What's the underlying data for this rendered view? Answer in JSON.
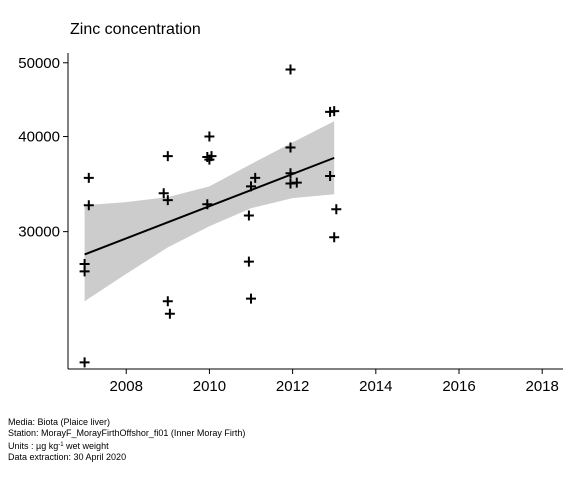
{
  "chart_data": {
    "type": "scatter",
    "title": "Zinc concentration",
    "xlabel": "",
    "ylabel": "",
    "y_scale": "log",
    "xlim": [
      2006.6,
      2018.5
    ],
    "ylim": [
      19800,
      51500
    ],
    "x_ticks": [
      2008,
      2010,
      2012,
      2014,
      2016,
      2018
    ],
    "y_ticks": [
      30000,
      40000,
      50000
    ],
    "x_tick_labels": [
      "2008",
      "2010",
      "2012",
      "2014",
      "2016",
      "2018"
    ],
    "y_tick_labels": [
      "30000",
      "40000",
      "50000"
    ],
    "grid": false,
    "colors": {
      "points": "#000000",
      "trend": "#000000",
      "band": "#cccccc"
    },
    "points": [
      {
        "x": 2007.0,
        "y": 27200
      },
      {
        "x": 2007.0,
        "y": 26600
      },
      {
        "x": 2007.0,
        "y": 20200
      },
      {
        "x": 2007.1,
        "y": 35300
      },
      {
        "x": 2007.1,
        "y": 32500
      },
      {
        "x": 2008.9,
        "y": 33700
      },
      {
        "x": 2009.0,
        "y": 37700
      },
      {
        "x": 2009.0,
        "y": 33000
      },
      {
        "x": 2009.0,
        "y": 24300
      },
      {
        "x": 2009.05,
        "y": 23400
      },
      {
        "x": 2009.95,
        "y": 37600
      },
      {
        "x": 2010.0,
        "y": 40000
      },
      {
        "x": 2010.0,
        "y": 37300
      },
      {
        "x": 2010.05,
        "y": 37700
      },
      {
        "x": 2009.95,
        "y": 32600
      },
      {
        "x": 2010.95,
        "y": 31500
      },
      {
        "x": 2010.95,
        "y": 27400
      },
      {
        "x": 2011.0,
        "y": 34400
      },
      {
        "x": 2011.0,
        "y": 24500
      },
      {
        "x": 2011.1,
        "y": 35300
      },
      {
        "x": 2011.95,
        "y": 49000
      },
      {
        "x": 2011.95,
        "y": 38700
      },
      {
        "x": 2011.95,
        "y": 35800
      },
      {
        "x": 2011.95,
        "y": 34700
      },
      {
        "x": 2012.1,
        "y": 34800
      },
      {
        "x": 2012.9,
        "y": 43100
      },
      {
        "x": 2013.0,
        "y": 43200
      },
      {
        "x": 2012.9,
        "y": 35500
      },
      {
        "x": 2013.05,
        "y": 32100
      },
      {
        "x": 2013.0,
        "y": 29500
      }
    ],
    "trend": {
      "x": [
        2007.0,
        2013.0
      ],
      "y": [
        28000,
        37500
      ]
    },
    "band": {
      "x": [
        2007.0,
        2008.0,
        2009.0,
        2010.0,
        2011.0,
        2012.0,
        2013.0
      ],
      "lower": [
        24300,
        26400,
        28600,
        30500,
        32200,
        33200,
        33600
      ],
      "upper": [
        32500,
        32800,
        33300,
        34400,
        36800,
        39300,
        41900
      ]
    }
  },
  "footer": {
    "media": "Media: Biota (Plaice liver)",
    "station": "Station: MorayF_MorayFirthOffshor_fi01 (Inner Moray Firth)",
    "units_prefix": "Units : µg kg",
    "units_sup": "-1",
    "units_suffix": " wet weight",
    "extraction": "Data extraction: 30 April 2020"
  }
}
